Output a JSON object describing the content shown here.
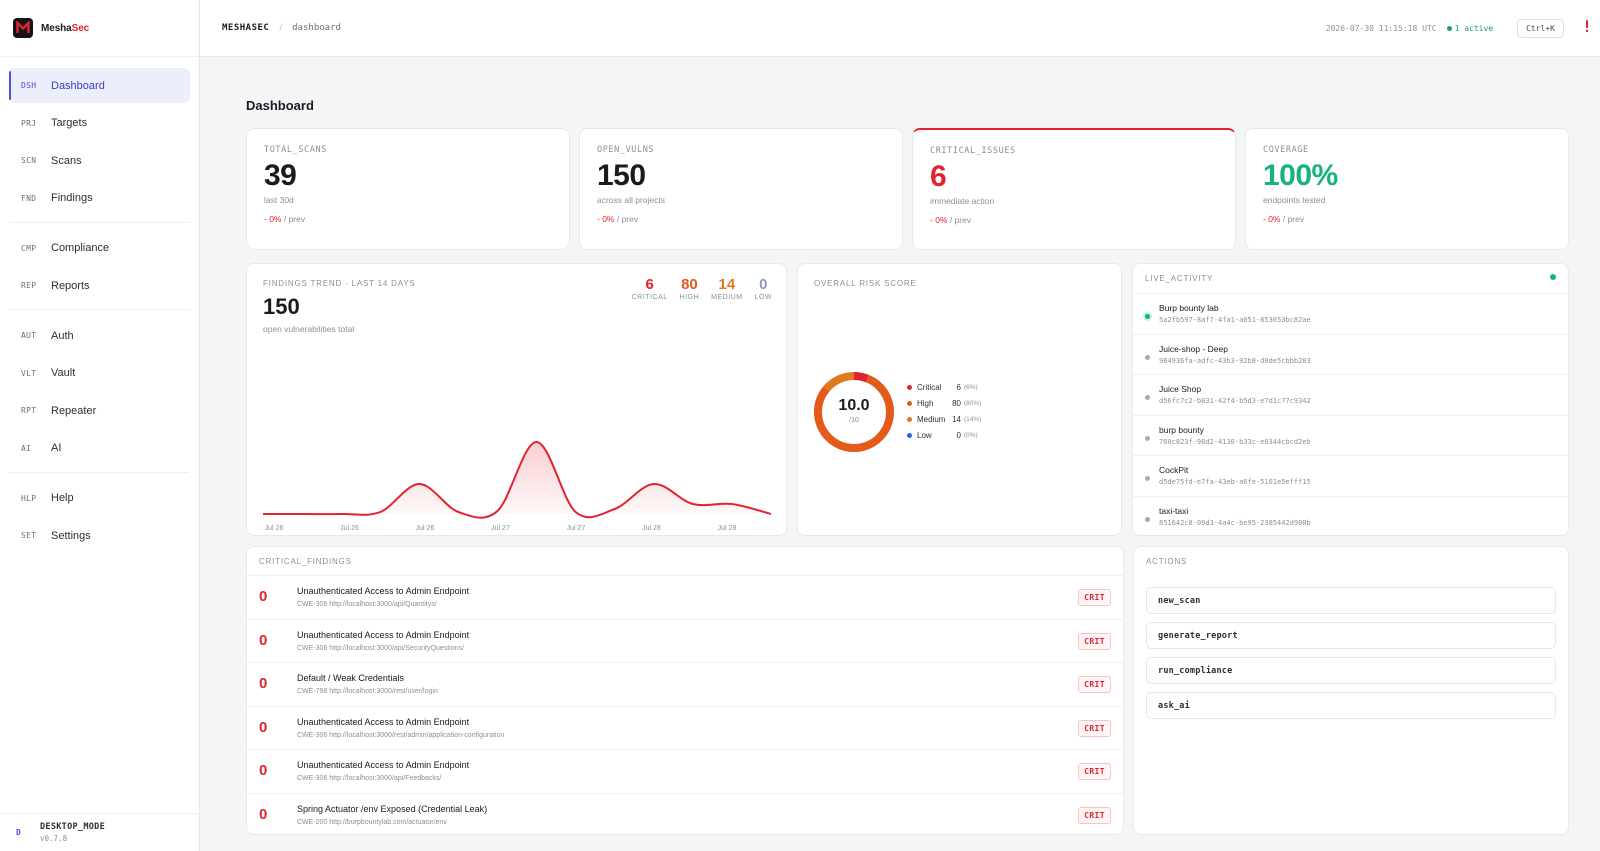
{
  "brand": {
    "name_main": "Mesha",
    "name_accent": "Sec"
  },
  "colors": {
    "accent": "#4b52d6",
    "critical": "#e2232f",
    "high": "#e35a1a",
    "medium": "#e07a1f",
    "low": "#8a9bb8",
    "success": "#16b37a"
  },
  "sidebar": {
    "groups": [
      [
        {
          "code": "DSH",
          "label": "Dashboard",
          "active": true
        },
        {
          "code": "PRJ",
          "label": "Targets"
        },
        {
          "code": "SCN",
          "label": "Scans"
        },
        {
          "code": "FND",
          "label": "Findings"
        }
      ],
      [
        {
          "code": "CMP",
          "label": "Compliance"
        },
        {
          "code": "REP",
          "label": "Reports"
        }
      ],
      [
        {
          "code": "AUT",
          "label": "Auth"
        },
        {
          "code": "VLT",
          "label": "Vault"
        },
        {
          "code": "RPT",
          "label": "Repeater"
        },
        {
          "code": "AI",
          "label": "AI"
        }
      ],
      [
        {
          "code": "HLP",
          "label": "Help"
        },
        {
          "code": "SET",
          "label": "Settings"
        }
      ]
    ],
    "footer": {
      "badge": "D",
      "mode": "DESKTOP_MODE",
      "version": "v0.7.8"
    }
  },
  "header": {
    "crumb_root": "MESHASEC",
    "crumb_sep": "/",
    "crumb_page": "dashboard",
    "timestamp": "2026-07-30 11:15:18 UTC",
    "active": "1 active",
    "shortcut": "Ctrl+K",
    "bell_icon": "bell-alert-icon"
  },
  "page_title": "Dashboard",
  "stats": [
    {
      "key": "TOTAL_SCANS",
      "value": "39",
      "sub": "last 30d",
      "delta": "- 0%",
      "delta_suffix": "/ prev",
      "tone": "normal"
    },
    {
      "key": "OPEN_VULNS",
      "value": "150",
      "sub": "across all projects",
      "delta": "- 0%",
      "delta_suffix": "/ prev",
      "tone": "normal"
    },
    {
      "key": "CRITICAL_ISSUES",
      "value": "6",
      "sub": "immediate action",
      "delta": "- 0%",
      "delta_suffix": "/ prev",
      "tone": "red"
    },
    {
      "key": "COVERAGE",
      "value": "100%",
      "sub": "endpoints tested",
      "delta": "- 0%",
      "delta_suffix": "/ prev",
      "tone": "green"
    }
  ],
  "trend": {
    "title": "FINDINGS TREND - LAST 14 DAYS",
    "total": "150",
    "total_sub": "open vulnerabilities total",
    "severity": [
      {
        "count": "6",
        "label": "CRITICAL",
        "color": "#e2232f"
      },
      {
        "count": "80",
        "label": "HIGH",
        "color": "#e35a1a"
      },
      {
        "count": "14",
        "label": "MEDIUM",
        "color": "#e07a1f"
      },
      {
        "count": "0",
        "label": "LOW",
        "color": "#8a9bb8"
      }
    ]
  },
  "chart_data": {
    "type": "area",
    "title": "FINDINGS TREND - LAST 14 DAYS",
    "x": [
      "Jul 26",
      "Jul 26",
      "Jul 26",
      "Jul 27",
      "Jul 27",
      "Jul 28",
      "Jul 28"
    ],
    "points": [
      0,
      0,
      0,
      2,
      30,
      2,
      3,
      72,
      2,
      5,
      30,
      10,
      10,
      0
    ],
    "ylim": [
      0,
      80
    ],
    "grid": false,
    "legend": "none"
  },
  "risk": {
    "title": "OVERALL RISK SCORE",
    "score": "10.0",
    "score_sub": "/10",
    "legend": [
      {
        "name": "Critical",
        "count": "6",
        "pct": "(6%)",
        "value": 6,
        "color": "#e2232f"
      },
      {
        "name": "High",
        "count": "80",
        "pct": "(80%)",
        "value": 80,
        "color": "#e35a1a"
      },
      {
        "name": "Medium",
        "count": "14",
        "pct": "(14%)",
        "value": 14,
        "color": "#e07a1f"
      },
      {
        "name": "Low",
        "count": "0",
        "pct": "(0%)",
        "value": 0,
        "color": "#2563eb"
      }
    ]
  },
  "live": {
    "title": "LIVE_ACTIVITY",
    "items": [
      {
        "name": "Burp bounty lab",
        "id": "5a2fb597-8af7-4fa1-a051-853053bc82ae",
        "on": true
      },
      {
        "name": "Juice-shop - Deep",
        "id": "964936fa-adfc-43b3-92b8-d0de5cbbb283"
      },
      {
        "name": "Juice Shop",
        "id": "d56fc7c2-b831-42f4-b5d3-e7d1c77c9342"
      },
      {
        "name": "burp bounty",
        "id": "760c823f-98d2-4130-b33c-e6344cbcd2eb"
      },
      {
        "name": "CockPit",
        "id": "d5de75fd-e7fa-43eb-a6fe-5101e5efff15"
      },
      {
        "name": "taxi-taxi",
        "id": "851642c8-09d3-4a4c-be95-2385442d908b"
      }
    ]
  },
  "critical": {
    "title": "CRITICAL_FINDINGS",
    "items": [
      {
        "score": "0",
        "title": "Unauthenticated Access to Admin Endpoint",
        "meta": "CWE-306 http://localhost:3000/api/Quantitys/",
        "tag": "CRIT"
      },
      {
        "score": "0",
        "title": "Unauthenticated Access to Admin Endpoint",
        "meta": "CWE-306 http://localhost:3000/api/SecurityQuestions/",
        "tag": "CRIT"
      },
      {
        "score": "0",
        "title": "Default / Weak Credentials",
        "meta": "CWE-798 http://localhost:3000/rest/user/login",
        "tag": "CRIT"
      },
      {
        "score": "0",
        "title": "Unauthenticated Access to Admin Endpoint",
        "meta": "CWE-306 http://localhost:3000/rest/admin/application-configuration",
        "tag": "CRIT"
      },
      {
        "score": "0",
        "title": "Unauthenticated Access to Admin Endpoint",
        "meta": "CWE-306 http://localhost:3000/api/Feedbacks/",
        "tag": "CRIT"
      },
      {
        "score": "0",
        "title": "Spring Actuator /env Exposed (Credential Leak)",
        "meta": "CWE-200 http://burpbountylab.com/actuator/env",
        "tag": "CRIT"
      }
    ]
  },
  "actions": {
    "title": "ACTIONS",
    "items": [
      "new_scan",
      "generate_report",
      "run_compliance",
      "ask_ai"
    ]
  }
}
